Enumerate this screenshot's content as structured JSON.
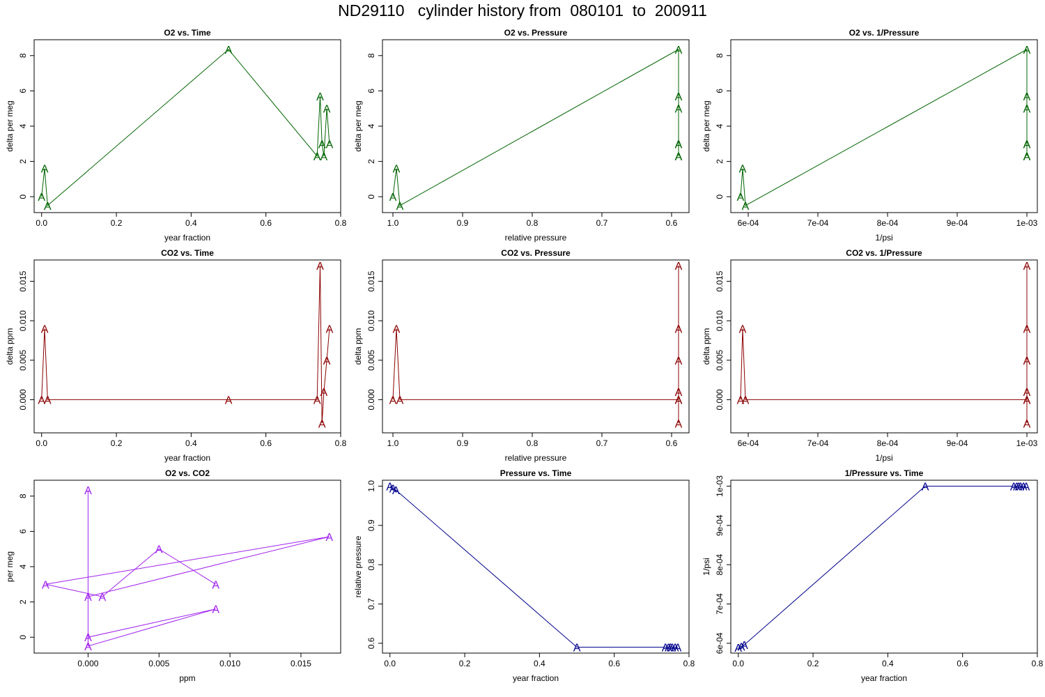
{
  "title": "ND29110   cylinder history from  080101  to  200911",
  "chart_data": [
    {
      "type": "line",
      "title": "O2 vs. Time",
      "xlabel": "year fraction",
      "ylabel": "delta per meg",
      "color": "#006400",
      "marker": "A",
      "xlim": [
        -0.02,
        0.8
      ],
      "ylim": [
        -0.9,
        8.9
      ],
      "xticks": [
        0.0,
        0.2,
        0.4,
        0.6,
        0.8
      ],
      "xtick_labels": [
        "0.0",
        "0.2",
        "0.4",
        "0.6",
        "0.8"
      ],
      "yticks": [
        0,
        2,
        4,
        6,
        8
      ],
      "ytick_labels": [
        "0",
        "2",
        "4",
        "6",
        "8"
      ],
      "x": [
        0.0,
        0.008,
        0.016,
        0.5,
        0.737,
        0.745,
        0.75,
        0.755,
        0.763,
        0.77
      ],
      "y": [
        0.0,
        1.6,
        -0.5,
        8.35,
        2.3,
        5.7,
        3.0,
        2.3,
        5.0,
        3.0
      ]
    },
    {
      "type": "line",
      "title": "O2 vs. Pressure",
      "xlabel": "relative pressure",
      "ylabel": "delta per meg",
      "color": "#006400",
      "marker": "A",
      "xlim": [
        1.015,
        0.575
      ],
      "ylim": [
        -0.9,
        8.9
      ],
      "xticks": [
        1.0,
        0.9,
        0.8,
        0.7,
        0.6
      ],
      "xtick_labels": [
        "1.0",
        "0.9",
        "0.8",
        "0.7",
        "0.6"
      ],
      "yticks": [
        0,
        2,
        4,
        6,
        8
      ],
      "ytick_labels": [
        "0",
        "2",
        "4",
        "6",
        "8"
      ],
      "x": [
        1.0,
        0.995,
        0.99,
        0.59,
        0.59,
        0.59,
        0.59,
        0.59,
        0.59,
        0.59
      ],
      "y": [
        0.0,
        1.6,
        -0.5,
        8.35,
        2.3,
        5.7,
        3.0,
        2.3,
        5.0,
        3.0
      ]
    },
    {
      "type": "line",
      "title": "O2 vs. 1/Pressure",
      "xlabel": "1/psi",
      "ylabel": "delta per meg",
      "color": "#006400",
      "marker": "A",
      "xlim": [
        0.000575,
        0.001015
      ],
      "ylim": [
        -0.9,
        8.9
      ],
      "xticks": [
        0.0006,
        0.0007,
        0.0008,
        0.0009,
        0.001
      ],
      "xtick_labels": [
        "6e-04",
        "7e-04",
        "8e-04",
        "9e-04",
        "1e-03"
      ],
      "yticks": [
        0,
        2,
        4,
        6,
        8
      ],
      "ytick_labels": [
        "0",
        "2",
        "4",
        "6",
        "8"
      ],
      "x": [
        0.000589,
        0.000592,
        0.000596,
        0.001,
        0.001,
        0.001,
        0.001,
        0.001,
        0.001,
        0.001
      ],
      "y": [
        0.0,
        1.6,
        -0.5,
        8.35,
        2.3,
        5.7,
        3.0,
        2.3,
        5.0,
        3.0
      ]
    },
    {
      "type": "line",
      "title": "CO2 vs. Time",
      "xlabel": "year fraction",
      "ylabel": "delta ppm",
      "color": "#8b0000",
      "marker": "A",
      "xlim": [
        -0.02,
        0.8
      ],
      "ylim": [
        -0.0042,
        0.0177
      ],
      "xticks": [
        0.0,
        0.2,
        0.4,
        0.6,
        0.8
      ],
      "xtick_labels": [
        "0.0",
        "0.2",
        "0.4",
        "0.6",
        "0.8"
      ],
      "yticks": [
        0.0,
        0.005,
        0.01,
        0.015
      ],
      "ytick_labels": [
        "0.000",
        "0.005",
        "0.010",
        "0.015"
      ],
      "x": [
        0.0,
        0.008,
        0.016,
        0.5,
        0.737,
        0.745,
        0.75,
        0.755,
        0.763,
        0.77
      ],
      "y": [
        0.0,
        0.009,
        0.0,
        0.0,
        0.0,
        0.017,
        -0.003,
        0.001,
        0.005,
        0.009
      ]
    },
    {
      "type": "line",
      "title": "CO2 vs. Pressure",
      "xlabel": "relative pressure",
      "ylabel": "delta ppm",
      "color": "#8b0000",
      "marker": "A",
      "xlim": [
        1.015,
        0.575
      ],
      "ylim": [
        -0.0042,
        0.0177
      ],
      "xticks": [
        1.0,
        0.9,
        0.8,
        0.7,
        0.6
      ],
      "xtick_labels": [
        "1.0",
        "0.9",
        "0.8",
        "0.7",
        "0.6"
      ],
      "yticks": [
        0.0,
        0.005,
        0.01,
        0.015
      ],
      "ytick_labels": [
        "0.000",
        "0.005",
        "0.010",
        "0.015"
      ],
      "x": [
        1.0,
        0.995,
        0.99,
        0.59,
        0.59,
        0.59,
        0.59,
        0.59,
        0.59,
        0.59
      ],
      "y": [
        0.0,
        0.009,
        0.0,
        0.0,
        0.0,
        0.017,
        -0.003,
        0.001,
        0.005,
        0.009
      ]
    },
    {
      "type": "line",
      "title": "CO2 vs. 1/Pressure",
      "xlabel": "1/psi",
      "ylabel": "delta ppm",
      "color": "#8b0000",
      "marker": "A",
      "xlim": [
        0.000575,
        0.001015
      ],
      "ylim": [
        -0.0042,
        0.0177
      ],
      "xticks": [
        0.0006,
        0.0007,
        0.0008,
        0.0009,
        0.001
      ],
      "xtick_labels": [
        "6e-04",
        "7e-04",
        "8e-04",
        "9e-04",
        "1e-03"
      ],
      "yticks": [
        0.0,
        0.005,
        0.01,
        0.015
      ],
      "ytick_labels": [
        "0.000",
        "0.005",
        "0.010",
        "0.015"
      ],
      "x": [
        0.000589,
        0.000592,
        0.000596,
        0.001,
        0.001,
        0.001,
        0.001,
        0.001,
        0.001,
        0.001
      ],
      "y": [
        0.0,
        0.009,
        0.0,
        0.0,
        0.0,
        0.017,
        -0.003,
        0.001,
        0.005,
        0.009
      ]
    },
    {
      "type": "line",
      "title": "O2 vs. CO2",
      "xlabel": "ppm",
      "ylabel": "per meg",
      "color": "#a020f0",
      "marker": "A",
      "xlim": [
        -0.0038,
        0.0178
      ],
      "ylim": [
        -0.9,
        8.9
      ],
      "xticks": [
        0.0,
        0.005,
        0.01,
        0.015
      ],
      "xtick_labels": [
        "0.000",
        "0.005",
        "0.010",
        "0.015"
      ],
      "yticks": [
        0,
        2,
        4,
        6,
        8
      ],
      "ytick_labels": [
        "0",
        "2",
        "4",
        "6",
        "8"
      ],
      "x": [
        0.0,
        0.009,
        0.0,
        0.0,
        0.0,
        0.017,
        -0.003,
        0.001,
        0.005,
        0.009
      ],
      "y": [
        0.0,
        1.6,
        -0.5,
        8.35,
        2.3,
        5.7,
        3.0,
        2.3,
        5.0,
        3.0
      ]
    },
    {
      "type": "line",
      "title": "Pressure vs. Time",
      "xlabel": "year fraction",
      "ylabel": "relative pressure",
      "color": "#00008b",
      "marker": "A",
      "xlim": [
        -0.02,
        0.8
      ],
      "ylim": [
        0.575,
        1.015
      ],
      "xticks": [
        0.0,
        0.2,
        0.4,
        0.6,
        0.8
      ],
      "xtick_labels": [
        "0.0",
        "0.2",
        "0.4",
        "0.6",
        "0.8"
      ],
      "yticks": [
        0.6,
        0.7,
        0.8,
        0.9,
        1.0
      ],
      "ytick_labels": [
        "0.6",
        "0.7",
        "0.8",
        "0.9",
        "1.0"
      ],
      "x": [
        0.0,
        0.008,
        0.016,
        0.5,
        0.737,
        0.745,
        0.75,
        0.755,
        0.763,
        0.77
      ],
      "y": [
        1.0,
        0.995,
        0.99,
        0.59,
        0.59,
        0.59,
        0.59,
        0.59,
        0.59,
        0.59
      ]
    },
    {
      "type": "line",
      "title": "1/Pressure vs. Time",
      "xlabel": "year fraction",
      "ylabel": "1/psi",
      "color": "#00008b",
      "marker": "A",
      "xlim": [
        -0.02,
        0.8
      ],
      "ylim": [
        0.000575,
        0.001015
      ],
      "xticks": [
        0.0,
        0.2,
        0.4,
        0.6,
        0.8
      ],
      "xtick_labels": [
        "0.0",
        "0.2",
        "0.4",
        "0.6",
        "0.8"
      ],
      "yticks": [
        0.0006,
        0.0007,
        0.0008,
        0.0009,
        0.001
      ],
      "ytick_labels": [
        "6e-04",
        "7e-04",
        "8e-04",
        "9e-04",
        "1e-03"
      ],
      "x": [
        0.0,
        0.008,
        0.016,
        0.5,
        0.737,
        0.745,
        0.75,
        0.755,
        0.763,
        0.77
      ],
      "y": [
        0.000589,
        0.000592,
        0.000596,
        0.001,
        0.001,
        0.001,
        0.001,
        0.001,
        0.001,
        0.001
      ]
    }
  ]
}
